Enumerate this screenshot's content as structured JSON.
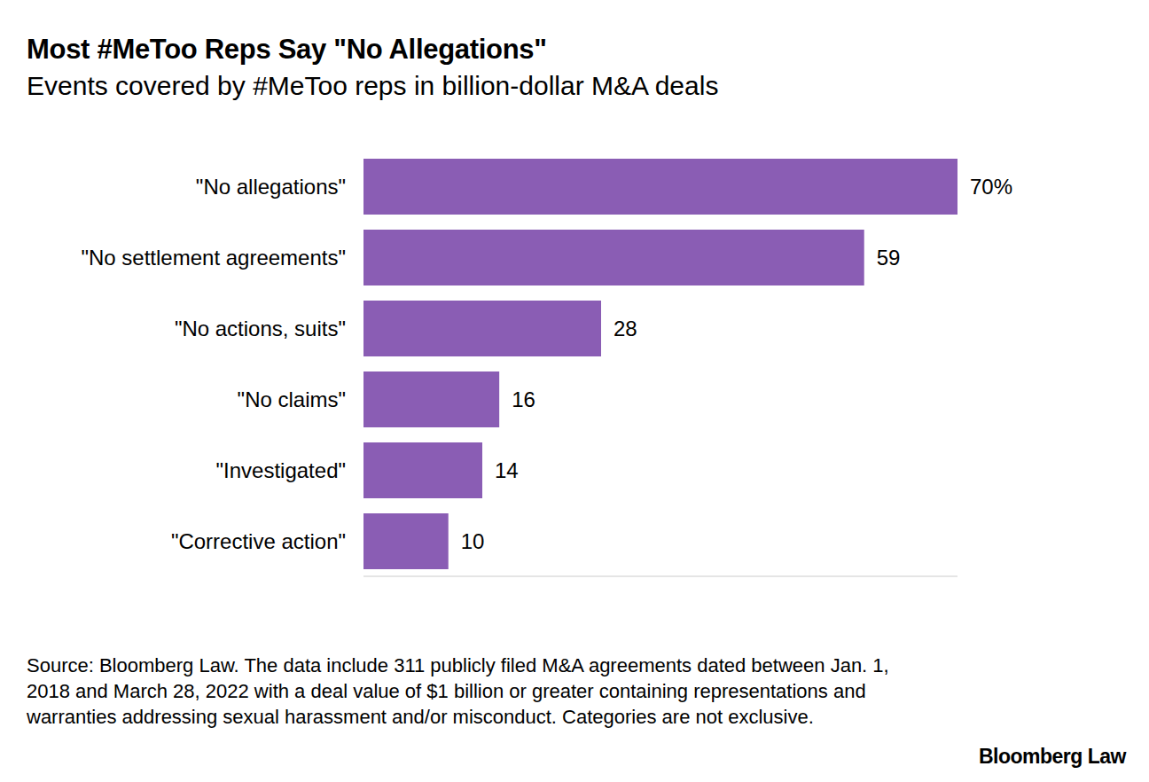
{
  "chart_data": {
    "type": "bar",
    "orientation": "horizontal",
    "title": "Most #MeToo Reps Say \"No Allegations\"",
    "subtitle": "Events covered by #MeToo reps in billion-dollar M&A deals",
    "categories": [
      "\"No allegations\"",
      "\"No settlement agreements\"",
      "\"No actions, suits\"",
      "\"No claims\"",
      "\"Investigated\"",
      "\"Corrective action\""
    ],
    "values": [
      70,
      59,
      28,
      16,
      14,
      10
    ],
    "value_labels": [
      "70%",
      "59",
      "28",
      "16",
      "14",
      "10"
    ],
    "data_labels": true,
    "color": "#8a5db4",
    "xlim": [
      0,
      70
    ],
    "xticks": [],
    "tick_labels": "y",
    "grid": false,
    "source": "Source: Bloomberg Law. The data include 311 publicly filed M&A agreements dated between Jan. 1, 2018 and March 28, 2022 with a deal value of $1 billion or greater containing representations and warranties addressing sexual harassment and/or misconduct. Categories are not exclusive.",
    "credit": "Bloomberg Law"
  }
}
